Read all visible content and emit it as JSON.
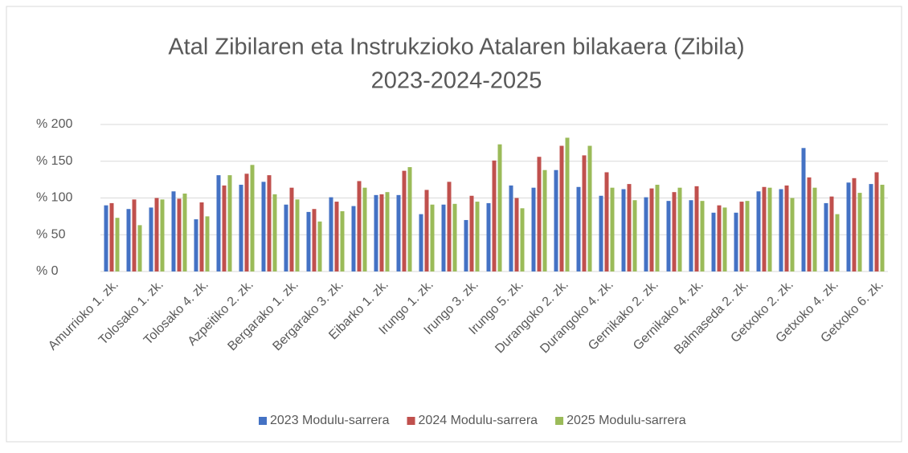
{
  "chart_data": {
    "type": "bar",
    "title": [
      "Atal Zibilaren eta Instrukzioko Atalaren bilakaera (Zibila)",
      "2023-2024-2025"
    ],
    "categories": [
      "Amurrioko 1. zk.",
      null,
      "Tolosako 1. zk.",
      null,
      "Tolosako 4. zk.",
      null,
      "Azpeitiko 2. zk.",
      null,
      "Bergarako 1. zk.",
      null,
      "Bergarako 3. zk.",
      null,
      "Eibarko 1. zk.",
      null,
      "Irungo 1. zk.",
      null,
      "Irungo 3. zk.",
      null,
      "Irungo 5. zk.",
      null,
      "Durangoko 2. zk.",
      null,
      "Durangoko 4. zk.",
      null,
      "Gernikako 2. zk.",
      null,
      "Gernikako 4. zk.",
      null,
      "Balmaseda 2. zk.",
      null,
      "Getxoko 2. zk.",
      null,
      "Getxoko 4. zk.",
      null,
      "Getxoko 6. zk."
    ],
    "series": [
      {
        "name": "2023 Modulu-sarrera",
        "color": "#4472c4",
        "values": [
          90,
          85,
          87,
          109,
          71,
          131,
          118,
          122,
          91,
          81,
          101,
          89,
          104,
          104,
          78,
          91,
          70,
          93,
          117,
          114,
          138,
          115,
          103,
          112,
          101,
          96,
          97,
          80,
          80,
          109,
          112,
          168,
          93,
          121,
          119
        ]
      },
      {
        "name": "2024 Modulu-sarrera",
        "color": "#c0504d",
        "values": [
          93,
          98,
          100,
          99,
          94,
          117,
          133,
          131,
          114,
          85,
          95,
          123,
          105,
          137,
          111,
          122,
          103,
          151,
          100,
          156,
          171,
          158,
          135,
          119,
          113,
          108,
          116,
          90,
          95,
          115,
          117,
          128,
          102,
          127,
          135
        ]
      },
      {
        "name": "2025 Modulu-sarrera",
        "color": "#9bbb59",
        "values": [
          73,
          63,
          98,
          106,
          75,
          131,
          145,
          105,
          98,
          68,
          82,
          114,
          108,
          142,
          91,
          92,
          95,
          173,
          86,
          138,
          182,
          171,
          114,
          97,
          118,
          114,
          96,
          87,
          96,
          114,
          100,
          114,
          78,
          107,
          118
        ]
      }
    ],
    "ylim": [
      0,
      200
    ],
    "yticks": [
      {
        "value": 0,
        "label": "% 0"
      },
      {
        "value": 50,
        "label": "% 50"
      },
      {
        "value": 100,
        "label": "% 100"
      },
      {
        "value": 150,
        "label": "% 150"
      },
      {
        "value": 200,
        "label": "% 200"
      }
    ],
    "grid": true,
    "legend": "bottom"
  }
}
